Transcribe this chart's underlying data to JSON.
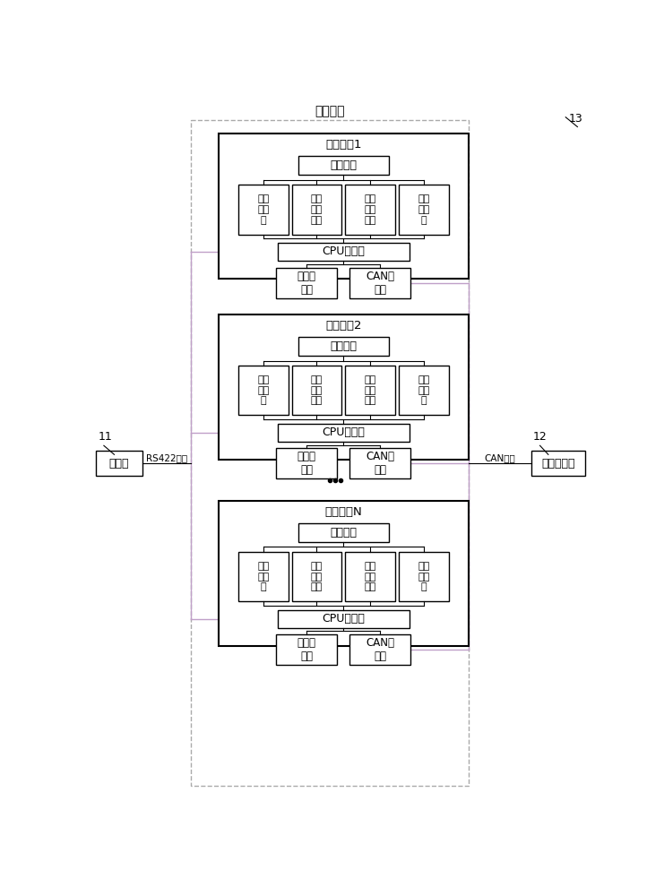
{
  "title": "通讯设备",
  "bg_color": "#ffffff",
  "text_color": "#000000",
  "devices": [
    {
      "label": "通讯装置1"
    },
    {
      "label": "通讯装置2"
    },
    {
      "label": "通讯装置N"
    }
  ],
  "sub_labels": [
    "工作\n指示\n灯",
    "电压\n监测\n模块",
    "温度\n监测\n模块",
    "故障\n指示\n灯"
  ],
  "power_label": "电源模块",
  "cpu_label": "CPU处理器",
  "serial_label": "串口驱\n动器",
  "can_drv_label": "CAN驱\n动器",
  "left_box_label": "上位机",
  "right_box_label": "棒位探测器",
  "left_bus_label": "RS422总线",
  "right_bus_label": "CAN总线",
  "ref_13": "13",
  "ref_11": "11",
  "ref_12": "12",
  "bus_color": "#c0a0c8",
  "outer_dash_color": "#aaaaaa",
  "inner_box_color": "#000000"
}
